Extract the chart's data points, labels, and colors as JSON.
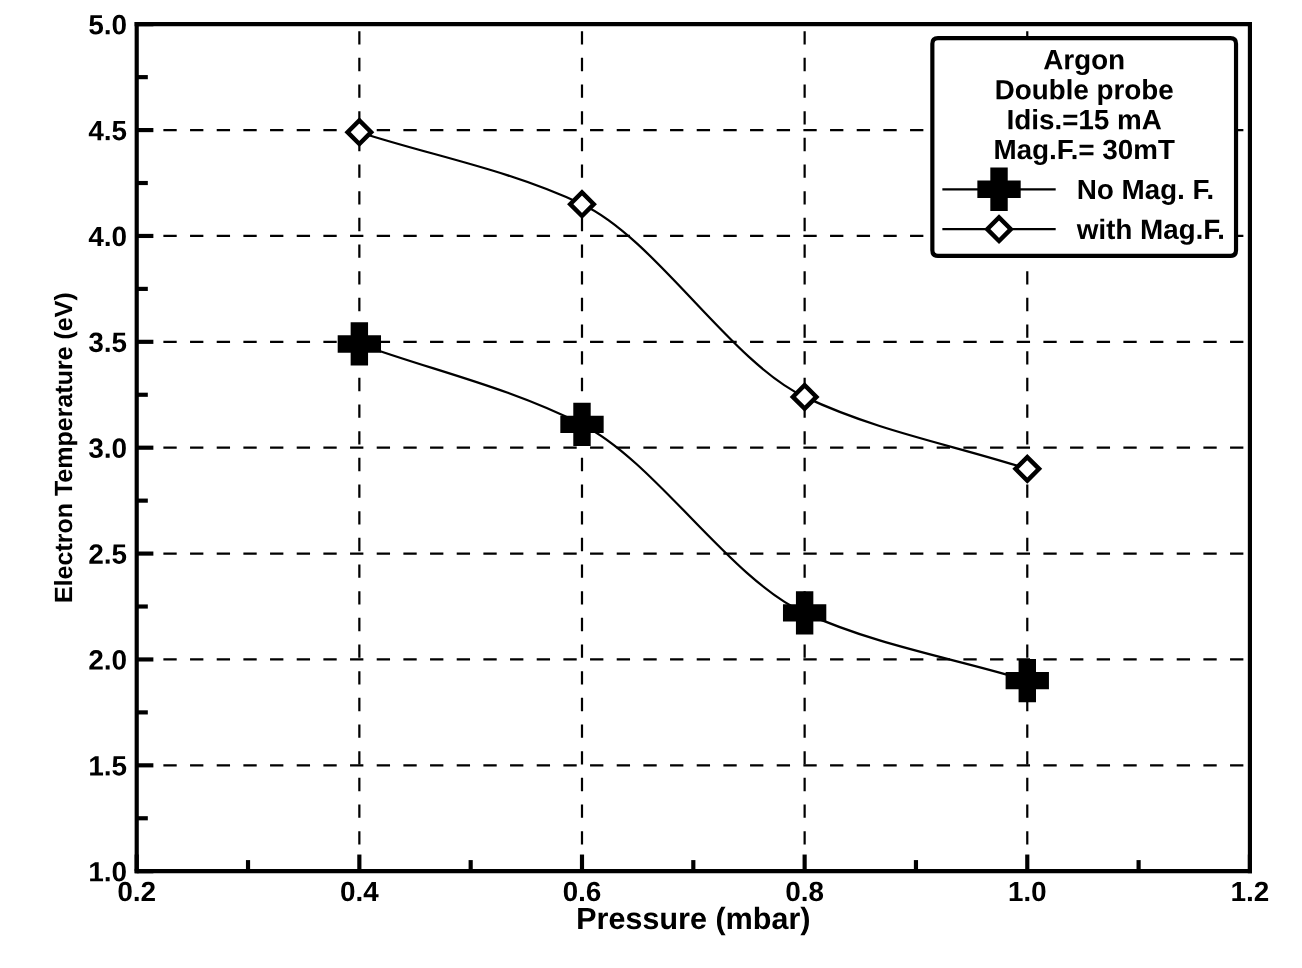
{
  "chart_data": {
    "type": "line",
    "xlabel": "Pressure (mbar)",
    "ylabel": "Electron Temperature (eV)",
    "legend_title": "Argon\nDouble probe\nIdis.=15 mA\nMag.F.= 30mT",
    "x": [
      0.4,
      0.6,
      0.8,
      1.0
    ],
    "series": [
      {
        "name": "No Mag. F.",
        "color": "#000000",
        "marker": "cross",
        "values": [
          3.49,
          3.11,
          2.22,
          1.9
        ]
      },
      {
        "name": "with Mag.F.",
        "color": "#000000",
        "marker": "diamond",
        "values": [
          4.49,
          4.15,
          3.24,
          2.9
        ]
      }
    ],
    "xlim": [
      0.2,
      1.2
    ],
    "xticks": [
      {
        "value": 0.2,
        "label": "0.2"
      },
      {
        "value": 0.4,
        "label": "0.4"
      },
      {
        "value": 0.6,
        "label": "0.6"
      },
      {
        "value": 0.8,
        "label": "0.8"
      },
      {
        "value": 1.0,
        "label": "1.0"
      },
      {
        "value": 1.2,
        "label": "1.2"
      }
    ],
    "ylim": [
      1.0,
      5.0
    ],
    "yticks": [
      {
        "value": 1.0,
        "label": "1.0"
      },
      {
        "value": 1.5,
        "label": "1.5"
      },
      {
        "value": 2.0,
        "label": "2.0"
      },
      {
        "value": 2.5,
        "label": "2.5"
      },
      {
        "value": 3.0,
        "label": "3.0"
      },
      {
        "value": 3.5,
        "label": "3.5"
      },
      {
        "value": 4.0,
        "label": "4.0"
      },
      {
        "value": 4.5,
        "label": "4.5"
      },
      {
        "value": 5.0,
        "label": "5.0"
      }
    ],
    "grid": true,
    "legend": "top right",
    "line_style": "solid"
  }
}
